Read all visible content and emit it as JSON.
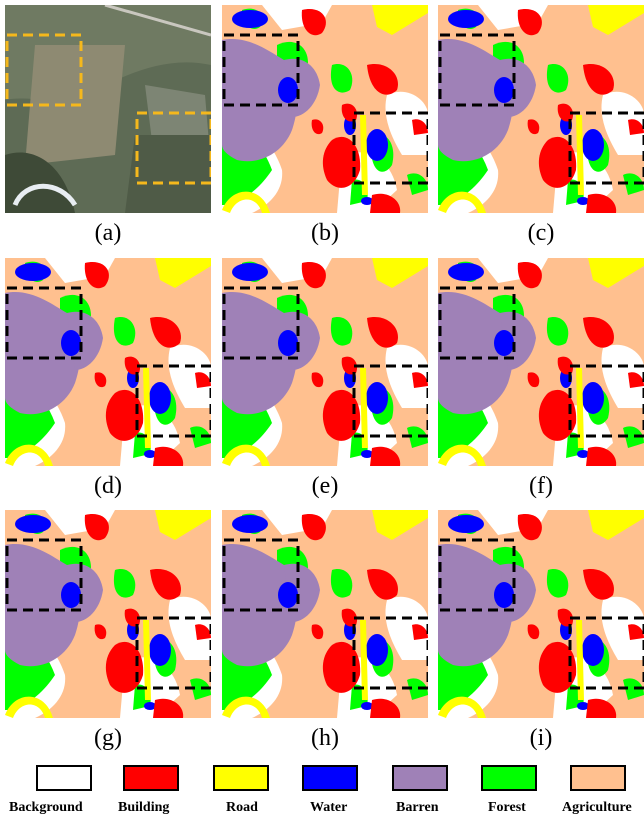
{
  "figure": {
    "captions": [
      "(a)",
      "(b)",
      "(c)",
      "(d)",
      "(e)",
      "(f)",
      "(g)",
      "(h)",
      "(i)"
    ],
    "panels": [
      {
        "id": "a",
        "kind": "aerial-photo"
      },
      {
        "id": "b",
        "kind": "segmentation-map"
      },
      {
        "id": "c",
        "kind": "segmentation-map"
      },
      {
        "id": "d",
        "kind": "segmentation-map"
      },
      {
        "id": "e",
        "kind": "segmentation-map"
      },
      {
        "id": "f",
        "kind": "segmentation-map"
      },
      {
        "id": "g",
        "kind": "segmentation-map"
      },
      {
        "id": "h",
        "kind": "segmentation-map"
      },
      {
        "id": "i",
        "kind": "segmentation-map"
      }
    ],
    "highlight_box_colors": {
      "photo": "#F5B81C",
      "maps": "#000000"
    },
    "legend": [
      {
        "label": "Background",
        "color": "#FFFFFF"
      },
      {
        "label": "Building",
        "color": "#FF0000"
      },
      {
        "label": "Road",
        "color": "#FFFF00"
      },
      {
        "label": "Water",
        "color": "#0000FF"
      },
      {
        "label": "Barren",
        "color": "#9F81B7"
      },
      {
        "label": "Forest",
        "color": "#00FF00"
      },
      {
        "label": "Agriculture",
        "color": "#FFC08F"
      }
    ]
  }
}
